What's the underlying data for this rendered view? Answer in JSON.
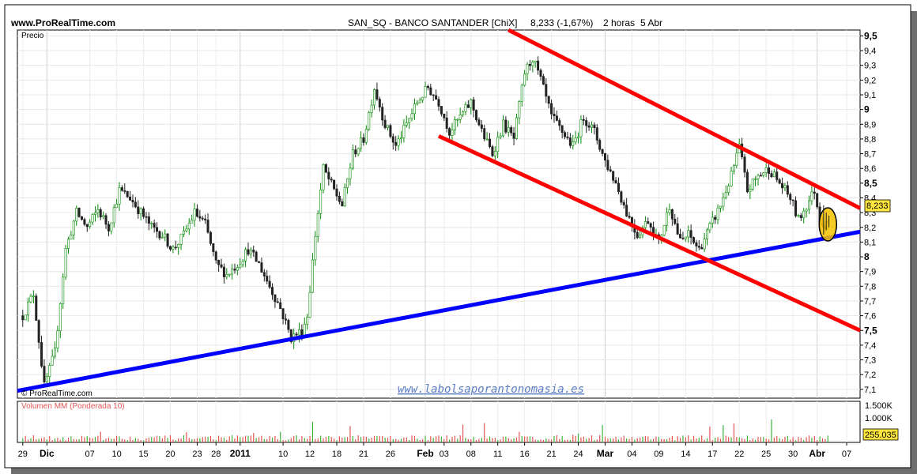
{
  "header": {
    "site": "www.ProRealTime.com",
    "title": "SAN_SQ - BANCO SANTANDER [ChiX]",
    "quote": "8,233 (-1,67%)",
    "period": "2 horas",
    "date": "5 Abr"
  },
  "price_panel": {
    "label": "Precio",
    "watermark": "© ProRealTime.com",
    "website": "www.labolsaporantonomasia.es",
    "last_value": "8,233"
  },
  "volume_panel": {
    "label": "Volumen MM (Ponderada 10)",
    "last_value": "255.035",
    "ticks": [
      "1.500K",
      "1.000K"
    ]
  },
  "x_labels": [
    {
      "t": 0,
      "text": "29",
      "bold": false
    },
    {
      "t": 9,
      "text": "Dic",
      "bold": true
    },
    {
      "t": 25,
      "text": "07",
      "bold": false
    },
    {
      "t": 35,
      "text": "10",
      "bold": false
    },
    {
      "t": 45,
      "text": "15",
      "bold": false
    },
    {
      "t": 55,
      "text": "20",
      "bold": false
    },
    {
      "t": 65,
      "text": "23",
      "bold": false
    },
    {
      "t": 72,
      "text": "28",
      "bold": false
    },
    {
      "t": 81,
      "text": "2011",
      "bold": true
    },
    {
      "t": 97,
      "text": "10",
      "bold": false
    },
    {
      "t": 107,
      "text": "12",
      "bold": false
    },
    {
      "t": 117,
      "text": "18",
      "bold": false
    },
    {
      "t": 127,
      "text": "21",
      "bold": false
    },
    {
      "t": 137,
      "text": "26",
      "bold": false
    },
    {
      "t": 150,
      "text": "Feb",
      "bold": true
    },
    {
      "t": 157,
      "text": "03",
      "bold": false
    },
    {
      "t": 167,
      "text": "08",
      "bold": false
    },
    {
      "t": 177,
      "text": "11",
      "bold": false
    },
    {
      "t": 187,
      "text": "16",
      "bold": false
    },
    {
      "t": 197,
      "text": "21",
      "bold": false
    },
    {
      "t": 207,
      "text": "24",
      "bold": false
    },
    {
      "t": 217,
      "text": "Mar",
      "bold": true
    },
    {
      "t": 227,
      "text": "04",
      "bold": false
    },
    {
      "t": 237,
      "text": "09",
      "bold": false
    },
    {
      "t": 247,
      "text": "14",
      "bold": false
    },
    {
      "t": 257,
      "text": "17",
      "bold": false
    },
    {
      "t": 267,
      "text": "22",
      "bold": false
    },
    {
      "t": 277,
      "text": "25",
      "bold": false
    },
    {
      "t": 287,
      "text": "30",
      "bold": false
    },
    {
      "t": 296,
      "text": "Abr",
      "bold": true
    },
    {
      "t": 307,
      "text": "07",
      "bold": false
    }
  ],
  "chart_data": {
    "type": "candlestick",
    "ylim": [
      7.04,
      9.54
    ],
    "x_range": [
      -2,
      312
    ],
    "x_unit": "bar index (2-hour bars)",
    "y_ticks": [
      {
        "v": 9.5,
        "label": "9,5",
        "bold": true
      },
      {
        "v": 9.4,
        "label": "9,4",
        "bold": false
      },
      {
        "v": 9.3,
        "label": "9,3",
        "bold": false
      },
      {
        "v": 9.2,
        "label": "9,2",
        "bold": false
      },
      {
        "v": 9.1,
        "label": "9,1",
        "bold": false
      },
      {
        "v": 9.0,
        "label": "9",
        "bold": true
      },
      {
        "v": 8.9,
        "label": "8,9",
        "bold": false
      },
      {
        "v": 8.8,
        "label": "8,8",
        "bold": false
      },
      {
        "v": 8.7,
        "label": "8,7",
        "bold": false
      },
      {
        "v": 8.6,
        "label": "8,6",
        "bold": false
      },
      {
        "v": 8.5,
        "label": "8,5",
        "bold": true
      },
      {
        "v": 8.4,
        "label": "8,4",
        "bold": false
      },
      {
        "v": 8.3,
        "label": "8,3",
        "bold": false
      },
      {
        "v": 8.2,
        "label": "8,2",
        "bold": false
      },
      {
        "v": 8.1,
        "label": "8,1",
        "bold": false
      },
      {
        "v": 8.0,
        "label": "8",
        "bold": true
      },
      {
        "v": 7.9,
        "label": "7,9",
        "bold": false
      },
      {
        "v": 7.8,
        "label": "7,8",
        "bold": false
      },
      {
        "v": 7.7,
        "label": "7,7",
        "bold": false
      },
      {
        "v": 7.6,
        "label": "7,6",
        "bold": false
      },
      {
        "v": 7.5,
        "label": "7,5",
        "bold": true
      },
      {
        "v": 7.4,
        "label": "7,4",
        "bold": false
      },
      {
        "v": 7.3,
        "label": "7,3",
        "bold": false
      },
      {
        "v": 7.2,
        "label": "7,2",
        "bold": false
      },
      {
        "v": 7.1,
        "label": "7,1",
        "bold": false
      }
    ],
    "close_anchors": [
      [
        0,
        7.6
      ],
      [
        4,
        7.75
      ],
      [
        8,
        7.12
      ],
      [
        12,
        7.35
      ],
      [
        16,
        8.05
      ],
      [
        20,
        8.3
      ],
      [
        24,
        8.2
      ],
      [
        28,
        8.32
      ],
      [
        32,
        8.2
      ],
      [
        36,
        8.45
      ],
      [
        40,
        8.4
      ],
      [
        44,
        8.3
      ],
      [
        48,
        8.2
      ],
      [
        52,
        8.15
      ],
      [
        56,
        8.05
      ],
      [
        60,
        8.15
      ],
      [
        64,
        8.3
      ],
      [
        68,
        8.22
      ],
      [
        72,
        7.95
      ],
      [
        76,
        7.88
      ],
      [
        80,
        7.95
      ],
      [
        84,
        8.05
      ],
      [
        88,
        7.95
      ],
      [
        92,
        7.8
      ],
      [
        96,
        7.65
      ],
      [
        100,
        7.45
      ],
      [
        104,
        7.5
      ],
      [
        106,
        7.6
      ],
      [
        109,
        8.15
      ],
      [
        112,
        8.6
      ],
      [
        116,
        8.45
      ],
      [
        119,
        8.35
      ],
      [
        123,
        8.7
      ],
      [
        127,
        8.8
      ],
      [
        131,
        9.15
      ],
      [
        135,
        8.9
      ],
      [
        139,
        8.75
      ],
      [
        143,
        8.9
      ],
      [
        147,
        9.05
      ],
      [
        151,
        9.15
      ],
      [
        155,
        9.05
      ],
      [
        159,
        8.85
      ],
      [
        163,
        8.95
      ],
      [
        167,
        9.05
      ],
      [
        171,
        8.85
      ],
      [
        175,
        8.7
      ],
      [
        179,
        8.9
      ],
      [
        183,
        8.8
      ],
      [
        187,
        9.25
      ],
      [
        190,
        9.35
      ],
      [
        193,
        9.2
      ],
      [
        197,
        8.95
      ],
      [
        201,
        8.85
      ],
      [
        205,
        8.75
      ],
      [
        209,
        8.95
      ],
      [
        213,
        8.85
      ],
      [
        217,
        8.65
      ],
      [
        221,
        8.5
      ],
      [
        225,
        8.3
      ],
      [
        229,
        8.15
      ],
      [
        233,
        8.25
      ],
      [
        237,
        8.1
      ],
      [
        241,
        8.35
      ],
      [
        245,
        8.1
      ],
      [
        248,
        8.15
      ],
      [
        252,
        8.05
      ],
      [
        256,
        8.2
      ],
      [
        260,
        8.35
      ],
      [
        264,
        8.55
      ],
      [
        267,
        8.75
      ],
      [
        270,
        8.45
      ],
      [
        274,
        8.55
      ],
      [
        278,
        8.6
      ],
      [
        282,
        8.5
      ],
      [
        286,
        8.4
      ],
      [
        289,
        8.25
      ],
      [
        292,
        8.35
      ],
      [
        295,
        8.45
      ],
      [
        297,
        8.25
      ],
      [
        299,
        8.22
      ],
      [
        300,
        8.233
      ]
    ],
    "volume_max": 1700000,
    "trendlines": [
      {
        "color": "#0000ff",
        "from": [
          -2,
          7.09
        ],
        "to": [
          312,
          8.17
        ]
      },
      {
        "color": "#ff0000",
        "from": [
          181,
          9.54
        ],
        "to": [
          312,
          8.33
        ]
      },
      {
        "color": "#ff0000",
        "from": [
          155,
          8.82
        ],
        "to": [
          312,
          7.5
        ]
      }
    ],
    "highlight_ellipse": {
      "x": 300,
      "y": 8.22,
      "color": "#f5c200"
    }
  }
}
